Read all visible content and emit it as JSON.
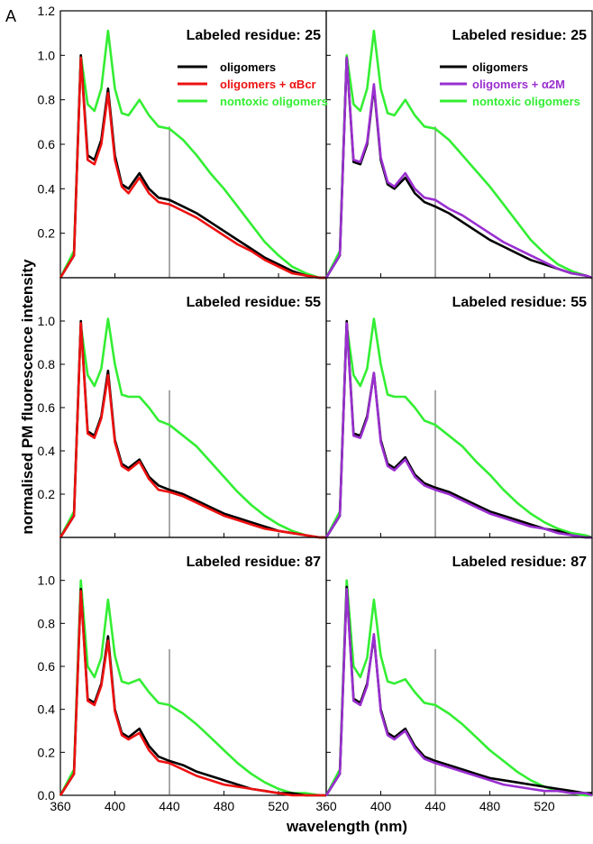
{
  "figure_label": "A",
  "colors": {
    "oligomers": "#000000",
    "abcr": "#ee1111",
    "a2m": "#9a2fd0",
    "nontoxic": "#33ee33",
    "marker": "#555555"
  },
  "chart_data": {
    "type": "line",
    "ylabel": "normalised PM fluorescence intensity",
    "xlabel": "wavelength (nm)",
    "xlim": [
      360,
      555
    ],
    "ylim": [
      0,
      1.2
    ],
    "x_ticks": [
      360,
      400,
      440,
      480,
      520
    ],
    "y_ticks_top": [
      "0.2",
      "0.4",
      "0.6",
      "0.8",
      "1.0",
      "1.2"
    ],
    "y_ticks_other": [
      "0.2",
      "0.4",
      "0.6",
      "0.8",
      "1.0"
    ],
    "y_ticks_bottom": [
      "0.0",
      "0.2",
      "0.4",
      "0.6",
      "0.8",
      "1.0"
    ],
    "x_ticks_left": [
      "360",
      "400",
      "440",
      "480",
      "520"
    ],
    "x_ticks_right": [
      "360",
      "400",
      "440",
      "480",
      "520"
    ],
    "marker_line_x": 440,
    "x": [
      360,
      370,
      375,
      380,
      385,
      390,
      395,
      400,
      405,
      410,
      418,
      425,
      432,
      440,
      450,
      460,
      470,
      480,
      490,
      500,
      510,
      520,
      530,
      540,
      550,
      555
    ],
    "panels": [
      {
        "title": "Labeled residue: 25",
        "legend": [
          "oligomers",
          "oligomers + αBcr",
          "nontoxic oligomers"
        ],
        "series": [
          {
            "name": "oligomers",
            "values": [
              0.0,
              0.1,
              1.0,
              0.55,
              0.53,
              0.62,
              0.85,
              0.55,
              0.42,
              0.4,
              0.47,
              0.4,
              0.36,
              0.35,
              0.32,
              0.29,
              0.25,
              0.21,
              0.17,
              0.13,
              0.09,
              0.06,
              0.03,
              0.01,
              0.0,
              0.0
            ]
          },
          {
            "name": "oligomers + αBcr",
            "values": [
              0.0,
              0.1,
              0.99,
              0.53,
              0.51,
              0.6,
              0.83,
              0.53,
              0.41,
              0.38,
              0.45,
              0.38,
              0.34,
              0.33,
              0.3,
              0.27,
              0.23,
              0.19,
              0.15,
              0.12,
              0.08,
              0.05,
              0.02,
              0.01,
              0.0,
              0.0
            ]
          },
          {
            "name": "nontoxic oligomers",
            "values": [
              0.0,
              0.12,
              1.0,
              0.78,
              0.75,
              0.85,
              1.11,
              0.85,
              0.74,
              0.73,
              0.8,
              0.73,
              0.68,
              0.67,
              0.62,
              0.55,
              0.47,
              0.4,
              0.32,
              0.24,
              0.16,
              0.1,
              0.05,
              0.02,
              0.0,
              0.0
            ]
          }
        ]
      },
      {
        "title": "Labeled residue: 25",
        "legend": [
          "oligomers",
          "oligomers + α2M",
          "nontoxic  oligomers"
        ],
        "series": [
          {
            "name": "oligomers",
            "values": [
              0.0,
              0.1,
              0.99,
              0.52,
              0.51,
              0.6,
              0.86,
              0.53,
              0.42,
              0.4,
              0.45,
              0.38,
              0.34,
              0.32,
              0.29,
              0.25,
              0.21,
              0.17,
              0.14,
              0.11,
              0.08,
              0.06,
              0.04,
              0.02,
              0.01,
              0.0
            ]
          },
          {
            "name": "oligomers + α2M",
            "values": [
              0.0,
              0.1,
              0.99,
              0.53,
              0.52,
              0.61,
              0.87,
              0.54,
              0.43,
              0.41,
              0.47,
              0.4,
              0.36,
              0.35,
              0.31,
              0.28,
              0.24,
              0.2,
              0.16,
              0.13,
              0.1,
              0.07,
              0.04,
              0.02,
              0.01,
              0.0
            ]
          },
          {
            "name": "nontoxic  oligomers",
            "values": [
              0.0,
              0.12,
              1.0,
              0.78,
              0.75,
              0.85,
              1.11,
              0.85,
              0.74,
              0.73,
              0.8,
              0.73,
              0.68,
              0.67,
              0.62,
              0.55,
              0.48,
              0.41,
              0.33,
              0.25,
              0.17,
              0.11,
              0.06,
              0.03,
              0.01,
              0.0
            ]
          }
        ]
      },
      {
        "title": "Labeled residue: 55",
        "series": [
          {
            "name": "oligomers",
            "values": [
              0.0,
              0.1,
              1.0,
              0.49,
              0.47,
              0.56,
              0.77,
              0.45,
              0.34,
              0.32,
              0.36,
              0.28,
              0.24,
              0.22,
              0.2,
              0.17,
              0.14,
              0.11,
              0.09,
              0.07,
              0.05,
              0.03,
              0.02,
              0.01,
              0.0,
              0.0
            ]
          },
          {
            "name": "oligomers + αBcr",
            "values": [
              0.0,
              0.1,
              0.99,
              0.48,
              0.46,
              0.55,
              0.75,
              0.44,
              0.33,
              0.31,
              0.35,
              0.27,
              0.22,
              0.21,
              0.19,
              0.16,
              0.13,
              0.1,
              0.08,
              0.06,
              0.04,
              0.03,
              0.02,
              0.01,
              0.0,
              0.0
            ]
          },
          {
            "name": "nontoxic oligomers",
            "values": [
              0.0,
              0.12,
              0.98,
              0.75,
              0.7,
              0.78,
              1.01,
              0.8,
              0.66,
              0.65,
              0.65,
              0.6,
              0.54,
              0.52,
              0.47,
              0.42,
              0.35,
              0.28,
              0.21,
              0.15,
              0.1,
              0.06,
              0.03,
              0.01,
              0.0,
              0.0
            ]
          }
        ]
      },
      {
        "title": "Labeled residue: 55",
        "series": [
          {
            "name": "oligomers",
            "values": [
              0.0,
              0.1,
              1.0,
              0.48,
              0.47,
              0.56,
              0.76,
              0.45,
              0.34,
              0.32,
              0.37,
              0.29,
              0.25,
              0.23,
              0.21,
              0.18,
              0.15,
              0.12,
              0.1,
              0.08,
              0.06,
              0.04,
              0.03,
              0.01,
              0.0,
              0.0
            ]
          },
          {
            "name": "oligomers + α2M",
            "values": [
              0.0,
              0.1,
              0.99,
              0.47,
              0.46,
              0.55,
              0.76,
              0.44,
              0.33,
              0.31,
              0.36,
              0.28,
              0.24,
              0.22,
              0.2,
              0.17,
              0.14,
              0.11,
              0.09,
              0.07,
              0.05,
              0.04,
              0.02,
              0.01,
              0.0,
              0.0
            ]
          },
          {
            "name": "nontoxic oligomers",
            "values": [
              0.0,
              0.12,
              0.98,
              0.75,
              0.7,
              0.78,
              1.01,
              0.8,
              0.66,
              0.65,
              0.65,
              0.6,
              0.54,
              0.52,
              0.47,
              0.42,
              0.35,
              0.29,
              0.22,
              0.16,
              0.11,
              0.07,
              0.04,
              0.02,
              0.01,
              0.0
            ]
          }
        ]
      },
      {
        "title": "Labeled residue: 87",
        "series": [
          {
            "name": "oligomers",
            "values": [
              0.0,
              0.1,
              0.96,
              0.45,
              0.43,
              0.52,
              0.74,
              0.4,
              0.29,
              0.27,
              0.31,
              0.23,
              0.18,
              0.16,
              0.14,
              0.11,
              0.09,
              0.07,
              0.05,
              0.03,
              0.02,
              0.01,
              0.01,
              0.0,
              0.0,
              0.0
            ]
          },
          {
            "name": "oligomers + αBcr",
            "values": [
              0.0,
              0.1,
              0.95,
              0.44,
              0.42,
              0.51,
              0.72,
              0.39,
              0.28,
              0.26,
              0.29,
              0.21,
              0.16,
              0.15,
              0.12,
              0.09,
              0.07,
              0.05,
              0.04,
              0.03,
              0.02,
              0.01,
              0.0,
              0.0,
              0.0,
              0.0
            ]
          },
          {
            "name": "nontoxic oligomers",
            "values": [
              0.0,
              0.12,
              1.0,
              0.6,
              0.55,
              0.64,
              0.91,
              0.65,
              0.53,
              0.52,
              0.54,
              0.48,
              0.43,
              0.42,
              0.38,
              0.33,
              0.27,
              0.21,
              0.15,
              0.1,
              0.06,
              0.03,
              0.01,
              0.01,
              0.0,
              0.0
            ]
          }
        ]
      },
      {
        "title": "Labeled residue: 87",
        "series": [
          {
            "name": "oligomers",
            "values": [
              0.0,
              0.1,
              0.97,
              0.45,
              0.43,
              0.52,
              0.74,
              0.4,
              0.29,
              0.27,
              0.31,
              0.23,
              0.18,
              0.16,
              0.14,
              0.12,
              0.1,
              0.08,
              0.07,
              0.06,
              0.05,
              0.04,
              0.03,
              0.02,
              0.01,
              0.01
            ]
          },
          {
            "name": "oligomers + α2M",
            "values": [
              0.0,
              0.1,
              0.96,
              0.44,
              0.42,
              0.51,
              0.75,
              0.39,
              0.28,
              0.26,
              0.3,
              0.22,
              0.17,
              0.15,
              0.13,
              0.11,
              0.09,
              0.07,
              0.05,
              0.04,
              0.03,
              0.02,
              0.02,
              0.01,
              0.01,
              0.0
            ]
          },
          {
            "name": "nontoxic oligomers",
            "values": [
              0.0,
              0.12,
              1.0,
              0.6,
              0.55,
              0.64,
              0.91,
              0.65,
              0.53,
              0.52,
              0.54,
              0.48,
              0.43,
              0.42,
              0.38,
              0.33,
              0.27,
              0.21,
              0.16,
              0.11,
              0.07,
              0.04,
              0.02,
              0.01,
              0.0,
              0.0
            ]
          }
        ]
      }
    ]
  }
}
